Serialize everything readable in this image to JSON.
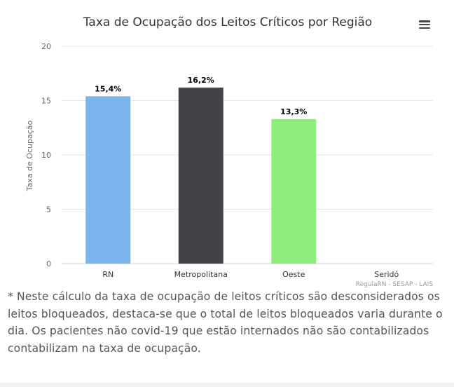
{
  "chart_data": {
    "type": "bar",
    "title": "Taxa de Ocupação dos Leitos Críticos por Região",
    "ylabel": "Taxa de Ocupação",
    "xlabel": "",
    "categories": [
      "RN",
      "Metropolitana",
      "Oeste",
      "Seridó"
    ],
    "values": [
      15.4,
      16.2,
      13.3,
      null
    ],
    "data_labels": [
      "15,4%",
      "16,2%",
      "13,3%",
      ""
    ],
    "colors": [
      "#7cb5ec",
      "#434348",
      "#90ed7d",
      "#f7a35c"
    ],
    "ylim": [
      0,
      20
    ],
    "yticks": [
      0,
      5,
      10,
      15,
      20
    ],
    "grid": true,
    "legend": "none",
    "credits": "RegulaRN - SESAP - LAIS"
  },
  "menu": {
    "icon": "hamburger-menu-icon"
  },
  "note": {
    "text": "* Neste cálculo da taxa de ocupação de leitos críticos são desconsiderados os leitos bloqueados, destaca-se que o total de leitos bloqueados varia durante o dia. Os pacientes não covid-19 que estão internados não são contabilizados contabilizam na taxa de ocupação."
  }
}
